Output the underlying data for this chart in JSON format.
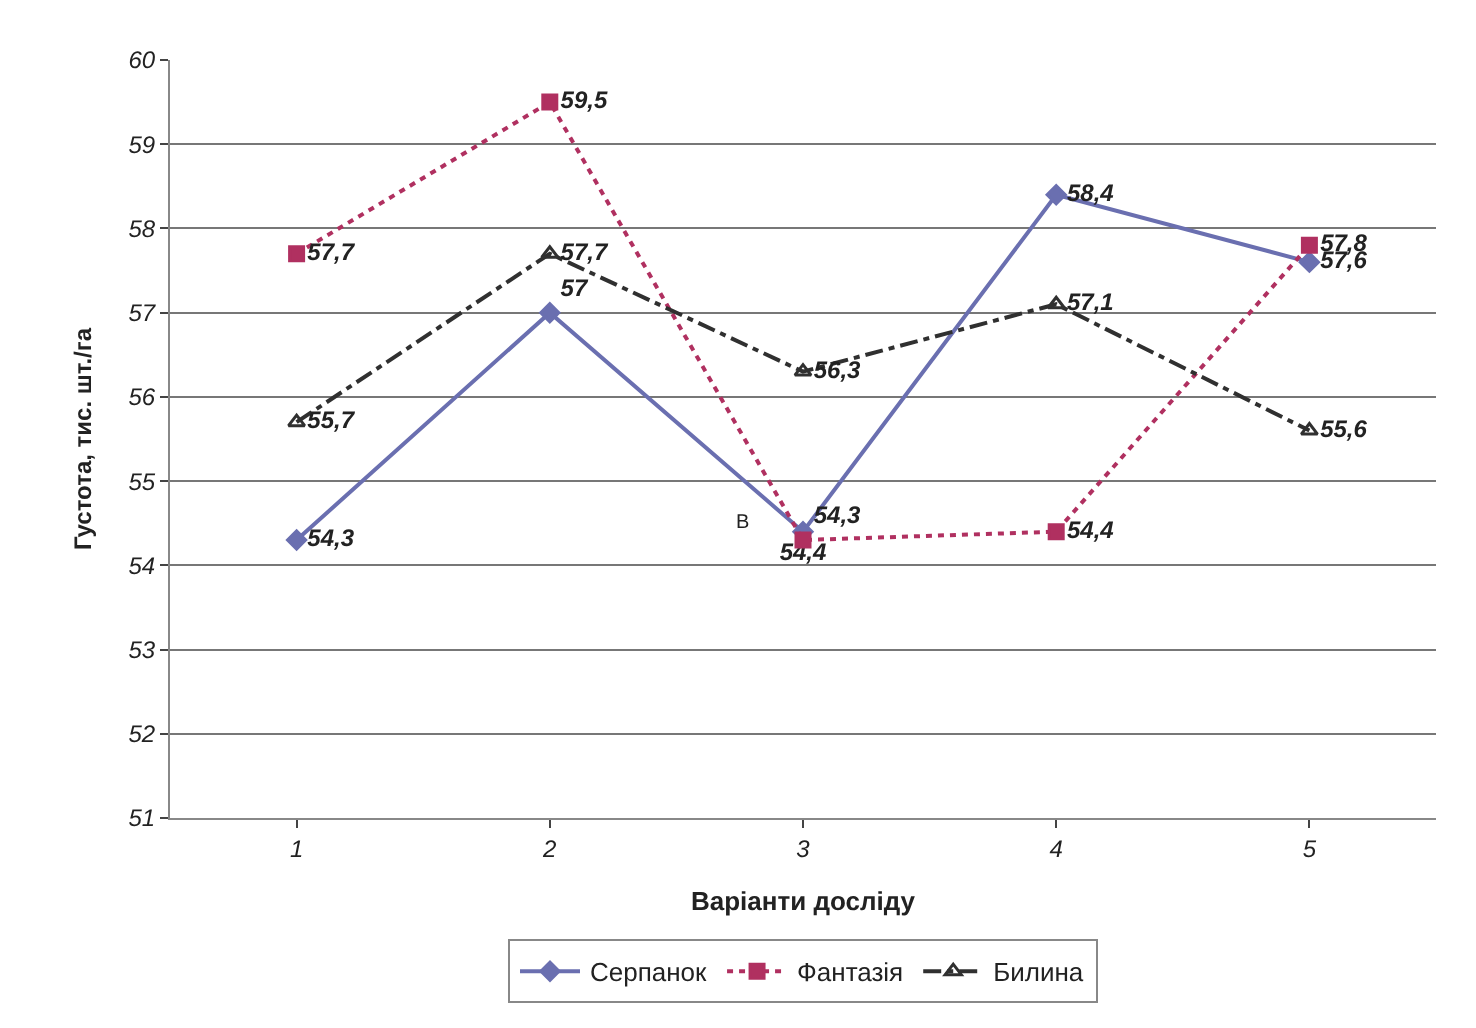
{
  "chart_data": {
    "type": "line",
    "xlabel": "Варіанти досліду",
    "ylabel": "Густота, тис. шт./га",
    "categories": [
      "1",
      "2",
      "3",
      "4",
      "5"
    ],
    "series": [
      {
        "name": "Серпанок",
        "color": "#6a6fb0",
        "marker": "diamond",
        "line_style": "solid",
        "values": [
          54.3,
          57,
          54.4,
          58.4,
          57.6
        ],
        "value_labels": [
          "54,3",
          "57",
          "54,4",
          "58,4",
          "57,6"
        ]
      },
      {
        "name": "Фантазія",
        "color": "#b03060",
        "marker": "square",
        "line_style": "dotted",
        "values": [
          57.7,
          59.5,
          54.3,
          54.4,
          57.8
        ],
        "value_labels": [
          "57,7",
          "59,5",
          "54,3",
          "54,4",
          "57,8"
        ]
      },
      {
        "name": "Билина",
        "color": "#303030",
        "marker": "triangle",
        "line_style": "dashed",
        "values": [
          55.7,
          57.7,
          56.3,
          57.1,
          55.6
        ],
        "value_labels": [
          "55,7",
          "57,7",
          "56,3",
          "57,1",
          "55,6"
        ]
      }
    ],
    "ylim": [
      51,
      60
    ],
    "yticks": [
      51,
      52,
      53,
      54,
      55,
      56,
      57,
      58,
      59,
      60
    ],
    "grid": "y",
    "legend": "bottom",
    "annotations": [
      {
        "text": "В",
        "x": "3",
        "y": 54.4
      }
    ]
  }
}
